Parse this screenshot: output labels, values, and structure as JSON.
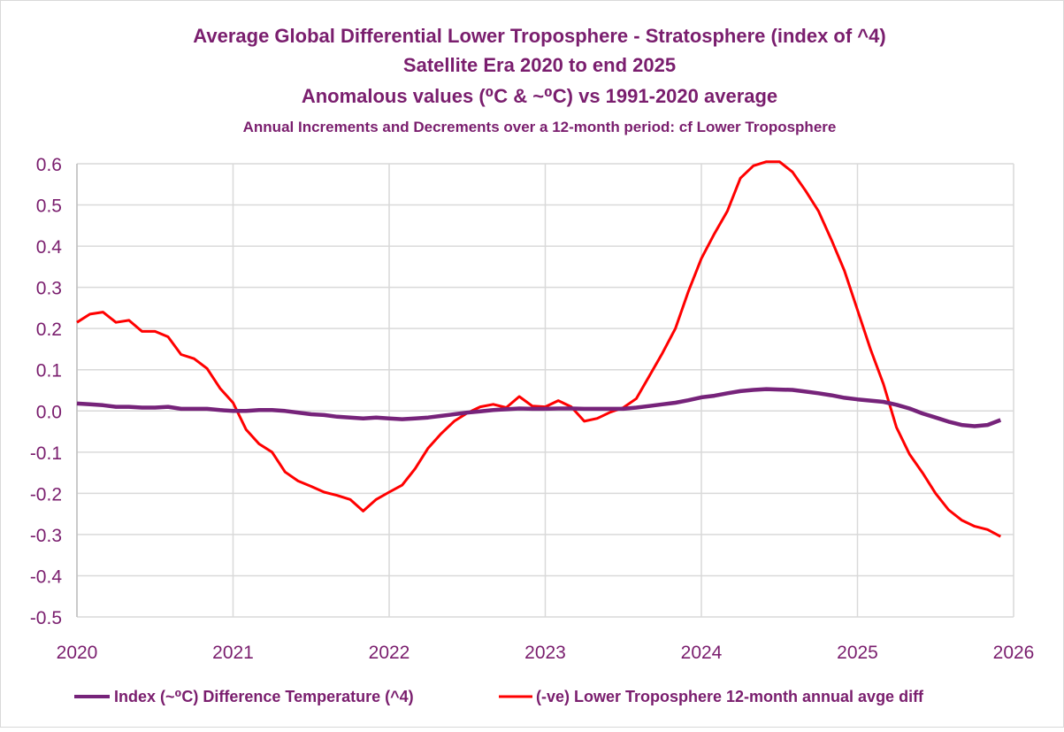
{
  "chart_data": {
    "type": "line",
    "title": [
      "Average Global Differential Lower Troposphere - Stratosphere (index of ^4)",
      "Satellite Era 2020 to end 2025",
      "Anomalous values (⁰C & ~⁰C) vs 1991-2020 average"
    ],
    "subtitle": "Annual Increments and Decrements over a 12-month period: cf Lower Troposphere",
    "xlabel": "",
    "ylabel": "",
    "xlim": [
      2020,
      2026
    ],
    "ylim": [
      -0.5,
      0.6
    ],
    "x_ticks": [
      "2020",
      "2021",
      "2022",
      "2023",
      "2024",
      "2025",
      "2026"
    ],
    "y_ticks": [
      "0.6",
      "0.5",
      "0.4",
      "0.3",
      "0.2",
      "0.1",
      "0.0",
      "-0.1",
      "-0.2",
      "-0.3",
      "-0.4",
      "-0.5"
    ],
    "grid": true,
    "legend_position": "bottom",
    "x_start": "2020-01",
    "x_step": "monthly",
    "series": [
      {
        "name": "Index (~⁰C) Difference Temperature (^4)",
        "color": "#76237a",
        "values": [
          0.018,
          0.016,
          0.014,
          0.01,
          0.01,
          0.008,
          0.008,
          0.01,
          0.005,
          0.005,
          0.005,
          0.002,
          0.0,
          0.0,
          0.002,
          0.002,
          0.0,
          -0.004,
          -0.008,
          -0.01,
          -0.014,
          -0.016,
          -0.018,
          -0.016,
          -0.018,
          -0.02,
          -0.018,
          -0.016,
          -0.012,
          -0.008,
          -0.004,
          -0.001,
          0.002,
          0.004,
          0.006,
          0.005,
          0.005,
          0.006,
          0.006,
          0.005,
          0.005,
          0.005,
          0.005,
          0.008,
          0.012,
          0.016,
          0.02,
          0.026,
          0.033,
          0.037,
          0.043,
          0.048,
          0.051,
          0.053,
          0.052,
          0.051,
          0.047,
          0.043,
          0.038,
          0.032,
          0.028,
          0.025,
          0.022,
          0.015,
          0.006,
          -0.006,
          -0.016,
          -0.026,
          -0.034,
          -0.037,
          -0.034,
          -0.022
        ]
      },
      {
        "name": "(-ve) Lower Troposphere 12-month annual avge diff",
        "color": "#ff0000",
        "values": [
          0.215,
          0.235,
          0.24,
          0.215,
          0.22,
          0.193,
          0.193,
          0.18,
          0.137,
          0.127,
          0.103,
          0.055,
          0.02,
          -0.045,
          -0.08,
          -0.1,
          -0.148,
          -0.17,
          -0.183,
          -0.197,
          -0.205,
          -0.215,
          -0.243,
          -0.215,
          -0.197,
          -0.18,
          -0.14,
          -0.09,
          -0.055,
          -0.025,
          -0.005,
          0.01,
          0.016,
          0.008,
          0.035,
          0.012,
          0.01,
          0.025,
          0.01,
          -0.025,
          -0.018,
          -0.003,
          0.008,
          0.03,
          0.085,
          0.14,
          0.2,
          0.29,
          0.37,
          0.43,
          0.485,
          0.565,
          0.595,
          0.605,
          0.605,
          0.58,
          0.535,
          0.485,
          0.415,
          0.34,
          0.245,
          0.15,
          0.065,
          -0.04,
          -0.105,
          -0.15,
          -0.2,
          -0.24,
          -0.265,
          -0.28,
          -0.288,
          -0.305
        ]
      }
    ]
  }
}
